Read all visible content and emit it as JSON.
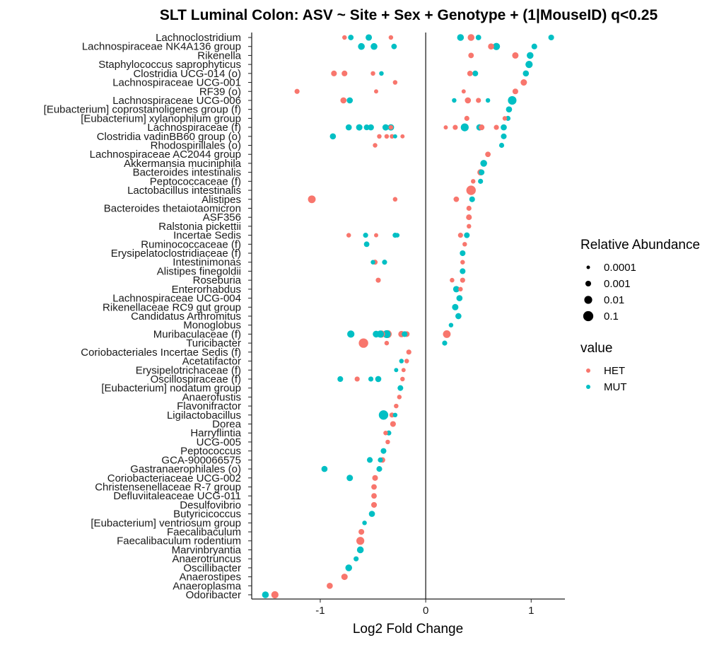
{
  "chart_data": {
    "type": "scatter",
    "title": "SLT Luminal Colon: ASV ~ Site + Sex + Genotype + (1|MouseID) q<0.25",
    "xlabel": "Log2 Fold Change",
    "ylabel": "",
    "xlim": [
      -1.65,
      1.32
    ],
    "x_ticks": [
      "-1",
      "0",
      "1"
    ],
    "x_tick_values": [
      -1,
      0,
      1
    ],
    "zero_line": true,
    "grid": false,
    "legend_placement": "right",
    "colors": {
      "HET": "#F8766D",
      "MUT": "#00BFC4"
    },
    "size_legend": {
      "title": "Relative Abundance",
      "labels": [
        "0.0001",
        "0.001",
        "0.01",
        "0.1"
      ],
      "values": [
        0.0001,
        0.001,
        0.01,
        0.1
      ]
    },
    "color_legend": {
      "title": "value",
      "labels": [
        "HET",
        "MUT"
      ]
    },
    "categories": [
      "Lachnoclostridium",
      "Lachnospiraceae NK4A136 group",
      "Rikenella",
      "Staphylococcus saprophyticus",
      "Clostridia UCG-014 (o)",
      "Lachnospiraceae UCG-001",
      "RF39 (o)",
      "Lachnospiraceae UCG-006",
      "[Eubacterium] coprostanoligenes group (f)",
      "[Eubacterium] xylanophilum group",
      "Lachnospiraceae (f)",
      "Clostridia vadinBB60 group (o)",
      "Rhodospirillales (o)",
      "Lachnospiraceae AC2044 group",
      "Akkermansia muciniphila",
      "Bacteroides intestinalis",
      "Peptococcaceae (f)",
      "Lactobacillus intestinalis",
      "Alistipes",
      "Bacteroides thetaiotaomicron",
      "ASF356",
      "Ralstonia pickettii",
      "Incertae Sedis",
      "Ruminococcaceae (f)",
      "Erysipelatoclostridiaceae (f)",
      "Intestinimonas",
      "Alistipes finegoldii",
      "Roseburia",
      "Enterorhabdus",
      "Lachnospiraceae UCG-004",
      "Rikenellaceae RC9 gut group",
      "Candidatus Arthromitus",
      "Monoglobus",
      "Muribaculaceae (f)",
      "Turicibacter",
      "Coriobacteriales Incertae Sedis (f)",
      "Acetatifactor",
      "Erysipelotrichaceae (f)",
      "Oscillospiraceae (f)",
      "[Eubacterium] nodatum group",
      "Anaerofustis",
      "Flavonifractor",
      "Ligilactobacillus",
      "Dorea",
      "Harryflintia",
      "UCG-005",
      "Peptococcus",
      "GCA-900066575",
      "Gastranaerophilales (o)",
      "Coriobacteriaceae UCG-002",
      "Christensenellaceae R-7 group",
      "Defluviitaleaceae UCG-011",
      "Desulfovibrio",
      "Butyricicoccus",
      "[Eubacterium] ventriosum group",
      "Faecalibaculum",
      "Faecalibaculum rodentium",
      "Marvinbryantia",
      "Anaerotruncus",
      "Oscillibacter",
      "Anaerostipes",
      "Anaeroplasma",
      "Odoribacter"
    ],
    "series": [
      {
        "name": "HET",
        "points": [
          {
            "cat": 0,
            "x": -0.77,
            "a": 0.0003
          },
          {
            "cat": 0,
            "x": 0.43,
            "a": 0.003
          },
          {
            "cat": 0,
            "x": -0.33,
            "a": 0.0003
          },
          {
            "cat": 1,
            "x": 0.62,
            "a": 0.0015
          },
          {
            "cat": 2,
            "x": 0.43,
            "a": 0.0008
          },
          {
            "cat": 2,
            "x": 0.85,
            "a": 0.002
          },
          {
            "cat": 4,
            "x": -0.87,
            "a": 0.001
          },
          {
            "cat": 4,
            "x": -0.77,
            "a": 0.001
          },
          {
            "cat": 4,
            "x": -0.5,
            "a": 0.0003
          },
          {
            "cat": 4,
            "x": 0.42,
            "a": 0.0008
          },
          {
            "cat": 5,
            "x": -0.29,
            "a": 0.0003
          },
          {
            "cat": 5,
            "x": 0.93,
            "a": 0.002
          },
          {
            "cat": 6,
            "x": -1.22,
            "a": 0.0005
          },
          {
            "cat": 6,
            "x": -0.47,
            "a": 0.0002
          },
          {
            "cat": 6,
            "x": 0.36,
            "a": 0.0002
          },
          {
            "cat": 6,
            "x": 0.85,
            "a": 0.001
          },
          {
            "cat": 7,
            "x": -0.78,
            "a": 0.0015
          },
          {
            "cat": 7,
            "x": 0.4,
            "a": 0.0015
          },
          {
            "cat": 7,
            "x": 0.5,
            "a": 0.0005
          },
          {
            "cat": 9,
            "x": 0.39,
            "a": 0.0005
          },
          {
            "cat": 9,
            "x": 0.75,
            "a": 0.0003
          },
          {
            "cat": 10,
            "x": 0.19,
            "a": 0.0002
          },
          {
            "cat": 10,
            "x": 0.28,
            "a": 0.0005
          },
          {
            "cat": 10,
            "x": 0.53,
            "a": 0.001
          },
          {
            "cat": 10,
            "x": 0.67,
            "a": 0.0005
          },
          {
            "cat": 10,
            "x": -0.33,
            "a": 0.0003
          },
          {
            "cat": 11,
            "x": -0.44,
            "a": 0.0003
          },
          {
            "cat": 11,
            "x": -0.37,
            "a": 0.0003
          },
          {
            "cat": 11,
            "x": -0.32,
            "a": 0.0003
          },
          {
            "cat": 11,
            "x": -0.22,
            "a": 0.0002
          },
          {
            "cat": 12,
            "x": -0.48,
            "a": 0.0003
          },
          {
            "cat": 13,
            "x": 0.59,
            "a": 0.0008
          },
          {
            "cat": 15,
            "x": 0.52,
            "a": 0.002
          },
          {
            "cat": 16,
            "x": 0.45,
            "a": 0.0003
          },
          {
            "cat": 17,
            "x": 0.43,
            "a": 0.05
          },
          {
            "cat": 18,
            "x": -1.08,
            "a": 0.008
          },
          {
            "cat": 18,
            "x": -0.29,
            "a": 0.0003
          },
          {
            "cat": 18,
            "x": 0.29,
            "a": 0.0008
          },
          {
            "cat": 19,
            "x": 0.41,
            "a": 0.0005
          },
          {
            "cat": 20,
            "x": 0.41,
            "a": 0.001
          },
          {
            "cat": 21,
            "x": 0.41,
            "a": 0.0003
          },
          {
            "cat": 22,
            "x": -0.73,
            "a": 0.0003
          },
          {
            "cat": 22,
            "x": -0.47,
            "a": 0.0002
          },
          {
            "cat": 22,
            "x": 0.33,
            "a": 0.0005
          },
          {
            "cat": 23,
            "x": 0.37,
            "a": 0.0003
          },
          {
            "cat": 25,
            "x": -0.48,
            "a": 0.0005
          },
          {
            "cat": 25,
            "x": 0.35,
            "a": 0.0003
          },
          {
            "cat": 27,
            "x": -0.45,
            "a": 0.0005
          },
          {
            "cat": 27,
            "x": 0.25,
            "a": 0.0003
          },
          {
            "cat": 27,
            "x": 0.35,
            "a": 0.0005
          },
          {
            "cat": 28,
            "x": 0.33,
            "a": 0.0003
          },
          {
            "cat": 33,
            "x": -0.42,
            "a": 0.005
          },
          {
            "cat": 33,
            "x": -0.36,
            "a": 0.01
          },
          {
            "cat": 33,
            "x": -0.23,
            "a": 0.002
          },
          {
            "cat": 33,
            "x": -0.18,
            "a": 0.001
          },
          {
            "cat": 33,
            "x": 0.2,
            "a": 0.008
          },
          {
            "cat": 34,
            "x": -0.59,
            "a": 0.05
          },
          {
            "cat": 34,
            "x": -0.37,
            "a": 0.0003
          },
          {
            "cat": 35,
            "x": -0.16,
            "a": 0.0005
          },
          {
            "cat": 36,
            "x": -0.18,
            "a": 0.0003
          },
          {
            "cat": 37,
            "x": -0.21,
            "a": 0.0002
          },
          {
            "cat": 38,
            "x": -0.65,
            "a": 0.0005
          },
          {
            "cat": 38,
            "x": -0.22,
            "a": 0.0003
          },
          {
            "cat": 40,
            "x": -0.25,
            "a": 0.0003
          },
          {
            "cat": 41,
            "x": -0.28,
            "a": 0.0003
          },
          {
            "cat": 42,
            "x": -0.32,
            "a": 0.0005
          },
          {
            "cat": 43,
            "x": -0.31,
            "a": 0.001
          },
          {
            "cat": 44,
            "x": -0.38,
            "a": 0.0003
          },
          {
            "cat": 45,
            "x": -0.36,
            "a": 0.0003
          },
          {
            "cat": 47,
            "x": -0.41,
            "a": 0.0008
          },
          {
            "cat": 49,
            "x": -0.48,
            "a": 0.001
          },
          {
            "cat": 50,
            "x": -0.49,
            "a": 0.0008
          },
          {
            "cat": 51,
            "x": -0.49,
            "a": 0.0008
          },
          {
            "cat": 52,
            "x": -0.49,
            "a": 0.001
          },
          {
            "cat": 55,
            "x": -0.61,
            "a": 0.001
          },
          {
            "cat": 56,
            "x": -0.62,
            "a": 0.01
          },
          {
            "cat": 60,
            "x": -0.77,
            "a": 0.002
          },
          {
            "cat": 61,
            "x": -0.91,
            "a": 0.0015
          },
          {
            "cat": 62,
            "x": -1.43,
            "a": 0.005
          }
        ]
      },
      {
        "name": "MUT",
        "points": [
          {
            "cat": 0,
            "x": -0.71,
            "a": 0.0008
          },
          {
            "cat": 0,
            "x": -0.54,
            "a": 0.002
          },
          {
            "cat": 0,
            "x": 0.33,
            "a": 0.003
          },
          {
            "cat": 0,
            "x": 0.5,
            "a": 0.0008
          },
          {
            "cat": 0,
            "x": 1.19,
            "a": 0.001
          },
          {
            "cat": 1,
            "x": -0.61,
            "a": 0.003
          },
          {
            "cat": 1,
            "x": -0.49,
            "a": 0.003
          },
          {
            "cat": 1,
            "x": -0.3,
            "a": 0.0008
          },
          {
            "cat": 1,
            "x": 0.67,
            "a": 0.005
          },
          {
            "cat": 1,
            "x": 1.03,
            "a": 0.001
          },
          {
            "cat": 2,
            "x": 0.99,
            "a": 0.003
          },
          {
            "cat": 3,
            "x": 0.98,
            "a": 0.005
          },
          {
            "cat": 4,
            "x": -0.42,
            "a": 0.0003
          },
          {
            "cat": 4,
            "x": 0.47,
            "a": 0.001
          },
          {
            "cat": 4,
            "x": 0.95,
            "a": 0.0015
          },
          {
            "cat": 7,
            "x": -0.72,
            "a": 0.0015
          },
          {
            "cat": 7,
            "x": 0.27,
            "a": 0.0003
          },
          {
            "cat": 7,
            "x": 0.59,
            "a": 0.0003
          },
          {
            "cat": 7,
            "x": 0.82,
            "a": 0.02
          },
          {
            "cat": 8,
            "x": 0.79,
            "a": 0.0015
          },
          {
            "cat": 9,
            "x": 0.78,
            "a": 0.0005
          },
          {
            "cat": 10,
            "x": -0.73,
            "a": 0.0015
          },
          {
            "cat": 10,
            "x": -0.63,
            "a": 0.002
          },
          {
            "cat": 10,
            "x": -0.56,
            "a": 0.001
          },
          {
            "cat": 10,
            "x": -0.52,
            "a": 0.0015
          },
          {
            "cat": 10,
            "x": -0.38,
            "a": 0.002
          },
          {
            "cat": 10,
            "x": -0.33,
            "a": 0.002
          },
          {
            "cat": 10,
            "x": 0.37,
            "a": 0.01
          },
          {
            "cat": 10,
            "x": 0.51,
            "a": 0.002
          },
          {
            "cat": 10,
            "x": 0.74,
            "a": 0.0015
          },
          {
            "cat": 11,
            "x": -0.88,
            "a": 0.0015
          },
          {
            "cat": 11,
            "x": -0.29,
            "a": 0.0002
          },
          {
            "cat": 11,
            "x": 0.74,
            "a": 0.001
          },
          {
            "cat": 12,
            "x": 0.72,
            "a": 0.0005
          },
          {
            "cat": 14,
            "x": 0.55,
            "a": 0.003
          },
          {
            "cat": 15,
            "x": 0.53,
            "a": 0.001
          },
          {
            "cat": 16,
            "x": 0.52,
            "a": 0.0005
          },
          {
            "cat": 18,
            "x": 0.44,
            "a": 0.001
          },
          {
            "cat": 22,
            "x": -0.57,
            "a": 0.0005
          },
          {
            "cat": 22,
            "x": -0.29,
            "a": 0.0005
          },
          {
            "cat": 22,
            "x": -0.27,
            "a": 0.0003
          },
          {
            "cat": 22,
            "x": 0.39,
            "a": 0.001
          },
          {
            "cat": 23,
            "x": -0.56,
            "a": 0.0008
          },
          {
            "cat": 24,
            "x": 0.35,
            "a": 0.001
          },
          {
            "cat": 25,
            "x": -0.5,
            "a": 0.0003
          },
          {
            "cat": 25,
            "x": -0.39,
            "a": 0.0005
          },
          {
            "cat": 26,
            "x": 0.35,
            "a": 0.001
          },
          {
            "cat": 28,
            "x": 0.29,
            "a": 0.002
          },
          {
            "cat": 29,
            "x": 0.32,
            "a": 0.0015
          },
          {
            "cat": 30,
            "x": 0.28,
            "a": 0.002
          },
          {
            "cat": 31,
            "x": 0.31,
            "a": 0.0015
          },
          {
            "cat": 32,
            "x": 0.24,
            "a": 0.0003
          },
          {
            "cat": 33,
            "x": -0.71,
            "a": 0.005
          },
          {
            "cat": 33,
            "x": -0.47,
            "a": 0.003
          },
          {
            "cat": 33,
            "x": -0.43,
            "a": 0.005
          },
          {
            "cat": 33,
            "x": -0.37,
            "a": 0.01
          },
          {
            "cat": 33,
            "x": -0.2,
            "a": 0.001
          },
          {
            "cat": 34,
            "x": 0.18,
            "a": 0.0005
          },
          {
            "cat": 36,
            "x": -0.23,
            "a": 0.0003
          },
          {
            "cat": 37,
            "x": -0.28,
            "a": 0.0002
          },
          {
            "cat": 38,
            "x": -0.81,
            "a": 0.001
          },
          {
            "cat": 38,
            "x": -0.52,
            "a": 0.0005
          },
          {
            "cat": 38,
            "x": -0.45,
            "a": 0.0015
          },
          {
            "cat": 39,
            "x": -0.24,
            "a": 0.001
          },
          {
            "cat": 42,
            "x": -0.4,
            "a": 0.05
          },
          {
            "cat": 42,
            "x": -0.29,
            "a": 0.0003
          },
          {
            "cat": 44,
            "x": -0.35,
            "a": 0.0005
          },
          {
            "cat": 46,
            "x": -0.4,
            "a": 0.001
          },
          {
            "cat": 47,
            "x": -0.53,
            "a": 0.001
          },
          {
            "cat": 47,
            "x": -0.43,
            "a": 0.0005
          },
          {
            "cat": 48,
            "x": -0.96,
            "a": 0.0015
          },
          {
            "cat": 48,
            "x": -0.44,
            "a": 0.001
          },
          {
            "cat": 49,
            "x": -0.72,
            "a": 0.002
          },
          {
            "cat": 53,
            "x": -0.51,
            "a": 0.0015
          },
          {
            "cat": 54,
            "x": -0.58,
            "a": 0.0003
          },
          {
            "cat": 57,
            "x": -0.62,
            "a": 0.003
          },
          {
            "cat": 58,
            "x": -0.66,
            "a": 0.0005
          },
          {
            "cat": 59,
            "x": -0.73,
            "a": 0.003
          },
          {
            "cat": 62,
            "x": -1.52,
            "a": 0.003
          }
        ]
      }
    ]
  }
}
